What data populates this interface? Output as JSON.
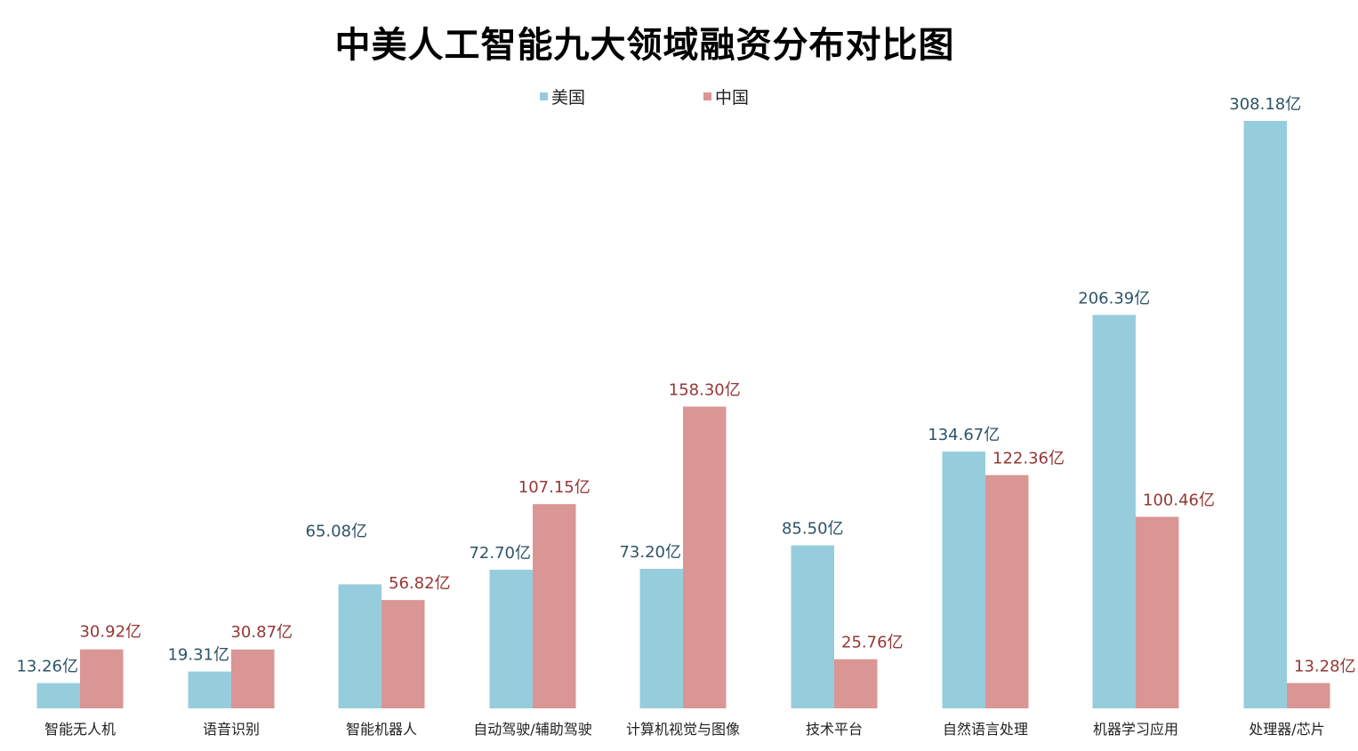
{
  "chart_data": {
    "type": "bar",
    "title": "中美人工智能九大领域融资分布对比图",
    "categories": [
      "智能无人机",
      "语音识别",
      "智能机器人",
      "自动驾驶/辅助驾驶",
      "计算机视觉与图像",
      "技术平台",
      "自然语言处理",
      "机器学习应用",
      "处理器/芯片"
    ],
    "series": [
      {
        "name": "美国",
        "color": "#96CDDC",
        "label_color": "#2E5468",
        "values": [
          13.26,
          19.31,
          65.08,
          72.7,
          73.2,
          85.5,
          134.67,
          206.39,
          308.18
        ],
        "labels": [
          "13.26亿",
          "19.31亿",
          "65.08亿",
          "72.70亿",
          "73.20亿",
          "85.50亿",
          "134.67亿",
          "206.39亿",
          "308.18亿"
        ]
      },
      {
        "name": "中国",
        "color": "#D99694",
        "label_color": "#953735",
        "values": [
          30.92,
          30.87,
          56.82,
          107.15,
          158.3,
          25.76,
          122.36,
          100.46,
          13.28
        ],
        "labels": [
          "30.92亿",
          "30.87亿",
          "56.82亿",
          "107.15亿",
          "158.30亿",
          "25.76亿",
          "122.36亿",
          "100.46亿",
          "13.28亿"
        ]
      }
    ],
    "ylim": [
      0,
      310
    ],
    "grid": false,
    "legend_position": "top-center",
    "xlabel": "",
    "ylabel": ""
  }
}
